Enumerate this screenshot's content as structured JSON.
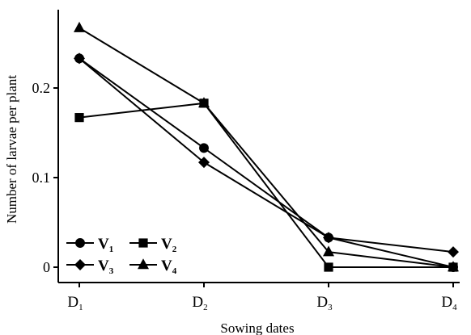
{
  "chart_data": {
    "type": "line",
    "title": "",
    "xlabel": "Sowing dates",
    "ylabel": "Number of larvae per plant",
    "categories": [
      "D1",
      "D2",
      "D3",
      "D4"
    ],
    "category_subscripts": [
      {
        "base": "D",
        "sub": "1"
      },
      {
        "base": "D",
        "sub": "2"
      },
      {
        "base": "D",
        "sub": "3"
      },
      {
        "base": "D",
        "sub": "4"
      }
    ],
    "ylim": [
      0,
      0.27
    ],
    "yticks": [
      0,
      0.1,
      0.2
    ],
    "ytick_labels": [
      "0",
      "0.1",
      "0.2"
    ],
    "grid": false,
    "legend_position": "bottom-left",
    "series": [
      {
        "name": "V1",
        "label_base": "V",
        "label_sub": "1",
        "marker": "circle",
        "color": "#000000",
        "values": [
          0.233,
          0.133,
          0.033,
          0.0
        ]
      },
      {
        "name": "V2",
        "label_base": "V",
        "label_sub": "2",
        "marker": "square",
        "color": "#000000",
        "values": [
          0.167,
          0.183,
          0.0,
          0.0
        ]
      },
      {
        "name": "V3",
        "label_base": "V",
        "label_sub": "3",
        "marker": "diamond",
        "color": "#000000",
        "values": [
          0.233,
          0.117,
          0.033,
          0.017
        ]
      },
      {
        "name": "V4",
        "label_base": "V",
        "label_sub": "4",
        "marker": "triangle",
        "color": "#000000",
        "values": [
          0.267,
          0.183,
          0.017,
          0.0
        ]
      }
    ]
  }
}
